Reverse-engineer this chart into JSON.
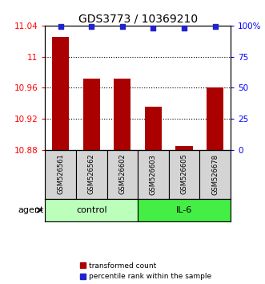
{
  "title": "GDS3773 / 10369210",
  "samples": [
    "GSM526561",
    "GSM526562",
    "GSM526602",
    "GSM526603",
    "GSM526605",
    "GSM526678"
  ],
  "bar_values": [
    11.025,
    10.972,
    10.972,
    10.935,
    10.885,
    10.96
  ],
  "percentile_values": [
    99,
    99,
    99,
    98,
    98,
    99
  ],
  "ylim_left": [
    10.88,
    11.04
  ],
  "yticks_left": [
    10.88,
    10.92,
    10.96,
    11.0,
    11.04
  ],
  "ytick_labels_left": [
    "10.88",
    "10.92",
    "10.96",
    "11",
    "11.04"
  ],
  "ylim_right": [
    0,
    100
  ],
  "yticks_right": [
    0,
    25,
    50,
    75,
    100
  ],
  "ytick_labels_right": [
    "0",
    "25",
    "50",
    "75",
    "100%"
  ],
  "bar_color": "#aa0000",
  "percentile_color": "#2222cc",
  "bar_width": 0.55,
  "group_ranges": [
    [
      0,
      2,
      "control",
      "#bbffbb"
    ],
    [
      3,
      5,
      "IL-6",
      "#44ee44"
    ]
  ],
  "agent_label": "agent",
  "legend_bar_label": "transformed count",
  "legend_pct_label": "percentile rank within the sample",
  "title_fontsize": 10,
  "tick_fontsize": 7.5,
  "sample_fontsize": 6.0,
  "group_fontsize": 8,
  "legend_fontsize": 6.5
}
